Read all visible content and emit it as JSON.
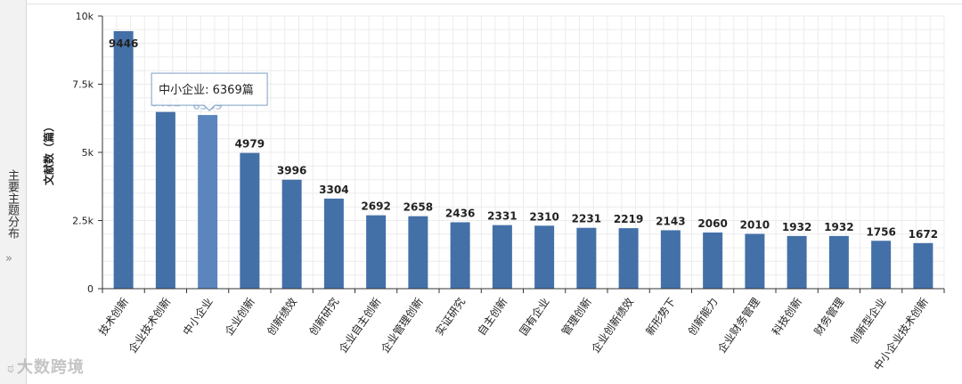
{
  "side_panel": {
    "label": "主要主题分布",
    "expand_icon": "double-chevron-right-icon",
    "arrows": "»"
  },
  "watermark": {
    "text": "大数跨境",
    "icon": "weibo-logo-icon"
  },
  "tooltip": {
    "category": "中小企业",
    "value": 6369,
    "unit": "篇",
    "text": "中小企业: 6369篇"
  },
  "colors": {
    "bar": "#4470a8",
    "bar_highlight": "#5a85bd",
    "grid": "#ececec",
    "axis": "#333333"
  },
  "chart_data": {
    "type": "bar",
    "ylabel": "文献数（篇）",
    "xlabel": "",
    "ylim": [
      0,
      10000
    ],
    "yticks": [
      {
        "value": 0,
        "label": "0"
      },
      {
        "value": 2500,
        "label": "2.5k"
      },
      {
        "value": 5000,
        "label": "5k"
      },
      {
        "value": 7500,
        "label": "7.5k"
      },
      {
        "value": 10000,
        "label": "10k"
      }
    ],
    "grid": true,
    "highlighted_index": 2,
    "categories": [
      "技术创新",
      "企业技术创新",
      "中小企业",
      "企业创新",
      "创新绩效",
      "创新研究",
      "企业自主创新",
      "企业管理创新",
      "实证研究",
      "自主创新",
      "国有企业",
      "管理创新",
      "企业创新绩效",
      "新形势下",
      "创新能力",
      "企业财务管理",
      "科技创新",
      "财务管理",
      "创新型企业",
      "中小企业技术创新"
    ],
    "values": [
      9446,
      6481,
      6369,
      4979,
      3996,
      3304,
      2692,
      2658,
      2436,
      2331,
      2310,
      2231,
      2219,
      2143,
      2060,
      2010,
      1932,
      1932,
      1756,
      1672
    ]
  }
}
